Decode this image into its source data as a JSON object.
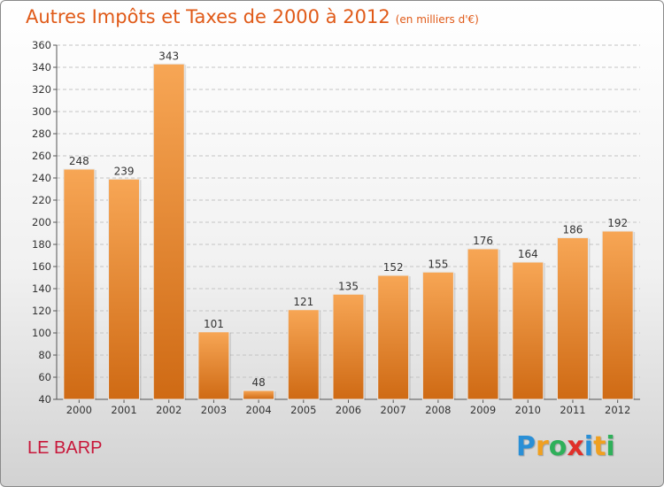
{
  "header": {
    "title": "Autres Impôts et Taxes de 2000 à 2012",
    "unit": "(en milliers d'€)"
  },
  "footer": {
    "location": "LE BARP",
    "logo_letters": [
      "P",
      "r",
      "o",
      "x",
      "i",
      "t",
      "i"
    ],
    "logo_colors": [
      "#2a8fd6",
      "#f0a020",
      "#2fb05a",
      "#e0302a",
      "#2a8fd6",
      "#f0a020",
      "#2fb05a"
    ]
  },
  "colors": {
    "title": "#e05a18",
    "location": "#c8173a",
    "bar_light": "#f7a655",
    "bar_dark": "#cf6a14"
  },
  "chart_data": {
    "type": "bar",
    "title": "Autres Impôts et Taxes de 2000 à 2012",
    "subtitle": "(en milliers d'€)",
    "categories": [
      "2000",
      "2001",
      "2002",
      "2003",
      "2004",
      "2005",
      "2006",
      "2007",
      "2008",
      "2009",
      "2010",
      "2011",
      "2012"
    ],
    "values": [
      248,
      239,
      343,
      101,
      48,
      121,
      135,
      152,
      155,
      176,
      164,
      186,
      192
    ],
    "ylim": [
      40,
      360
    ],
    "yticks": [
      40,
      60,
      80,
      100,
      120,
      140,
      160,
      180,
      200,
      220,
      240,
      260,
      280,
      300,
      320,
      340,
      360
    ],
    "grid": true,
    "data_labels": true,
    "legend": "none"
  }
}
